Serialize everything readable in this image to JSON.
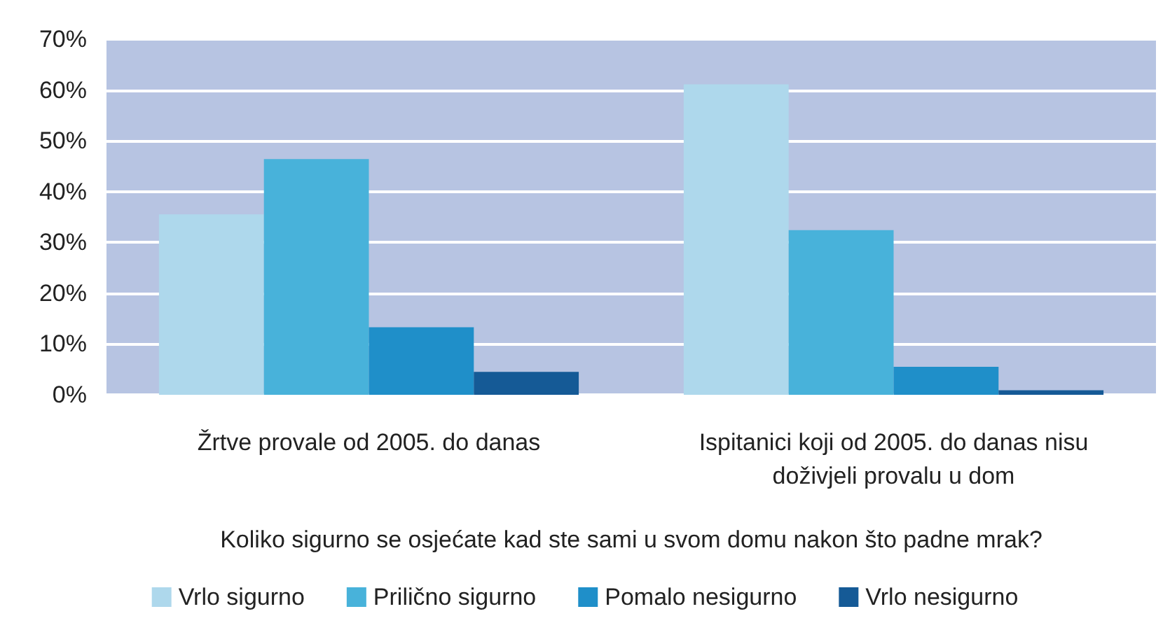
{
  "chart_data": {
    "type": "bar",
    "xlabel": "Koliko sigurno se osjećate kad ste sami u svom domu nakon što padne mrak?",
    "categories": [
      "Žrtve provale od 2005. do danas",
      "Ispitanici koji od 2005. do danas nisu\ndoživjeli provalu u dom"
    ],
    "series": [
      {
        "name": "Vrlo sigurno",
        "color": "#aed8ec",
        "values": [
          35.5,
          61.1
        ]
      },
      {
        "name": "Prilično sigurno",
        "color": "#48b2da",
        "values": [
          46.4,
          32.4
        ]
      },
      {
        "name": "Pomalo nesigurno",
        "color": "#1f8fc9",
        "values": [
          13.3,
          5.5
        ]
      },
      {
        "name": "Vrlo nesigurno",
        "color": "#155a96",
        "values": [
          4.5,
          0.9
        ]
      }
    ],
    "ylim": [
      0,
      70
    ],
    "yticks": [
      {
        "value": 0,
        "label": "0%"
      },
      {
        "value": 10,
        "label": "10%"
      },
      {
        "value": 20,
        "label": "20%"
      },
      {
        "value": 30,
        "label": "30%"
      },
      {
        "value": 40,
        "label": "40%"
      },
      {
        "value": 50,
        "label": "50%"
      },
      {
        "value": 60,
        "label": "60%"
      },
      {
        "value": 70,
        "label": "70%"
      }
    ],
    "grid": true,
    "legend": "bottom"
  }
}
